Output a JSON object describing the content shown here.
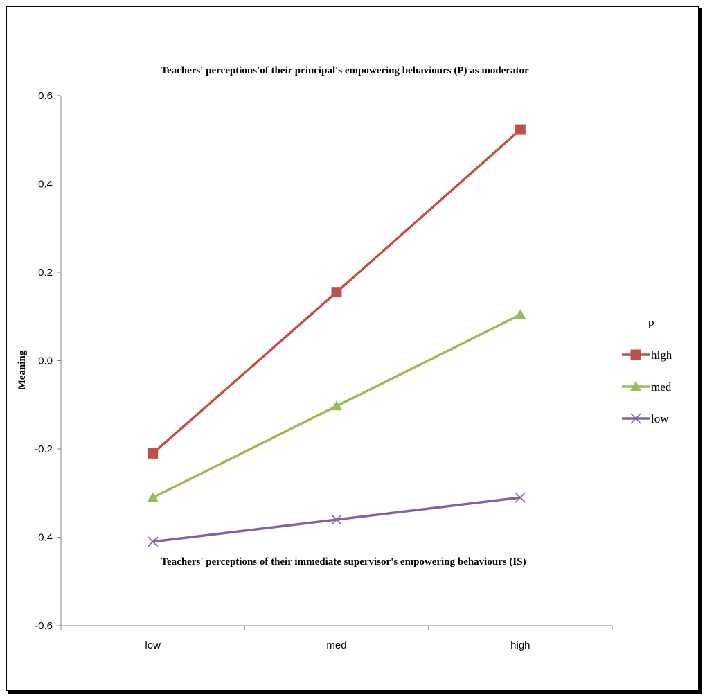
{
  "chart_data": {
    "type": "line",
    "title": "Teachers' perceptions'of their principal's empowering behaviours (P) as moderator",
    "xlabel": "Teachers' perceptions of their immediate supervisor's empowering behaviours (IS)",
    "ylabel": "Meaning",
    "categories": [
      "low",
      "med",
      "high"
    ],
    "ylim": [
      -0.6,
      0.6
    ],
    "yticks": [
      0.6,
      0.4,
      0.2,
      0.0,
      -0.2,
      -0.4,
      -0.6
    ],
    "ytick_labels": [
      "0.6",
      "0.4",
      "0.2",
      "0.0",
      "-0.2",
      "-0.4",
      "-0.6"
    ],
    "grid": false,
    "legend": {
      "title": "P",
      "placement": "right"
    },
    "series": [
      {
        "name": "high",
        "values": [
          -0.21,
          0.155,
          0.523
        ],
        "color": "#c0504d",
        "marker": "square"
      },
      {
        "name": "med",
        "values": [
          -0.31,
          -0.103,
          0.104
        ],
        "color": "#9bbb59",
        "marker": "triangle"
      },
      {
        "name": "low",
        "values": [
          -0.41,
          -0.36,
          -0.31
        ],
        "color": "#8064a2",
        "marker": "x"
      }
    ]
  }
}
